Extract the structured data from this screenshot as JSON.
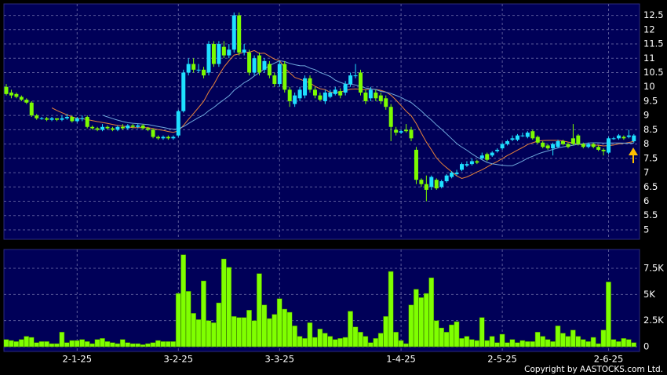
{
  "chart_data": [
    {
      "type": "candlestick",
      "up_color": "#1ee0ff",
      "down_color": "#7cfc00",
      "moving_averages": [
        {
          "period": 10,
          "color": "#e8823a"
        },
        {
          "period": 20,
          "color": "#6fa8dc"
        }
      ],
      "ylim": [
        4.67,
        12.9
      ],
      "yticks": [
        5,
        5.5,
        6,
        6.5,
        7,
        7.5,
        8,
        8.5,
        9,
        9.5,
        10,
        10.5,
        11,
        11.5,
        12,
        12.5
      ],
      "grid": true,
      "open": [
        10.0,
        9.8,
        9.75,
        9.65,
        9.55,
        9.45,
        9.0,
        8.9,
        8.9,
        8.85,
        8.9,
        8.85,
        8.9,
        8.95,
        8.8,
        8.9,
        8.95,
        8.6,
        8.55,
        8.5,
        8.6,
        8.55,
        8.5,
        8.6,
        8.55,
        8.65,
        8.6,
        8.65,
        8.55,
        8.5,
        8.25,
        8.2,
        8.25,
        8.2,
        8.3,
        9.15,
        10.5,
        10.8,
        10.6,
        10.6,
        10.5,
        11.5,
        10.8,
        11.4,
        11.1,
        11.3,
        12.5,
        11.2,
        11.2,
        10.5,
        11.1,
        10.6,
        10.8,
        10.4,
        10.1,
        10.8,
        9.9,
        9.4,
        9.6,
        9.7,
        10.3,
        9.9,
        9.7,
        9.5,
        9.65,
        9.75,
        9.85,
        9.8,
        10.1,
        10.4,
        10.5,
        9.8,
        9.6,
        9.8,
        9.7,
        9.6,
        9.3,
        8.5,
        8.4,
        8.5,
        8.5,
        7.8,
        6.75,
        6.6,
        6.5,
        6.75,
        6.5,
        6.7,
        6.85,
        6.95,
        7.1,
        7.25,
        7.3,
        7.4,
        7.5,
        7.65,
        7.6,
        7.75,
        7.85,
        8.0,
        8.15,
        8.15,
        8.3,
        8.25,
        8.45,
        8.25,
        8.05,
        7.95,
        7.85,
        7.9,
        8.1,
        8.0,
        8.2,
        8.3,
        8.0,
        7.9,
        8.0,
        7.9,
        7.8,
        7.7,
        8.2,
        8.2,
        8.25,
        8.25,
        8.1
      ],
      "high": [
        10.1,
        9.9,
        9.8,
        9.7,
        9.6,
        9.5,
        9.05,
        8.95,
        8.95,
        8.95,
        8.9,
        9.0,
        9.05,
        9.0,
        8.95,
        9.0,
        9.0,
        8.65,
        8.6,
        8.7,
        8.65,
        8.6,
        8.65,
        8.7,
        8.7,
        8.7,
        8.7,
        8.7,
        8.6,
        8.55,
        8.3,
        8.3,
        8.3,
        8.3,
        9.2,
        10.6,
        11.0,
        11.0,
        10.8,
        10.7,
        11.6,
        11.6,
        11.6,
        11.6,
        11.5,
        12.6,
        12.6,
        11.5,
        11.3,
        11.1,
        11.2,
        11.0,
        10.9,
        10.5,
        10.9,
        10.9,
        10.0,
        9.8,
        10.0,
        10.4,
        10.4,
        10.0,
        9.8,
        9.9,
        9.9,
        10.0,
        9.95,
        10.2,
        10.5,
        10.8,
        10.6,
        9.9,
        10.0,
        9.9,
        9.8,
        9.7,
        9.4,
        8.6,
        8.5,
        8.7,
        8.6,
        7.9,
        6.8,
        6.9,
        6.9,
        6.8,
        6.75,
        6.95,
        7.05,
        7.1,
        7.35,
        7.4,
        7.5,
        7.45,
        7.7,
        7.7,
        7.75,
        7.85,
        8.05,
        8.15,
        8.3,
        8.35,
        8.4,
        8.45,
        8.5,
        8.3,
        8.1,
        8.0,
        8.05,
        8.15,
        8.15,
        8.05,
        8.7,
        8.35,
        8.05,
        8.05,
        8.05,
        7.95,
        7.85,
        8.25,
        8.25,
        8.35,
        8.3,
        8.5,
        8.35
      ],
      "low": [
        9.7,
        9.6,
        9.6,
        9.5,
        9.4,
        8.95,
        8.85,
        8.85,
        8.8,
        8.8,
        8.8,
        8.8,
        8.85,
        8.75,
        8.75,
        8.8,
        8.55,
        8.5,
        8.45,
        8.45,
        8.5,
        8.45,
        8.45,
        8.5,
        8.5,
        8.55,
        8.55,
        8.5,
        8.45,
        8.2,
        8.15,
        8.15,
        8.15,
        8.15,
        8.25,
        9.1,
        10.4,
        10.5,
        10.5,
        10.3,
        10.4,
        10.7,
        10.7,
        11.0,
        11.0,
        11.2,
        11.1,
        11.1,
        10.4,
        10.4,
        10.4,
        10.5,
        10.3,
        10.0,
        10.0,
        9.8,
        9.3,
        9.3,
        9.5,
        9.6,
        9.8,
        9.6,
        9.5,
        9.4,
        9.6,
        9.7,
        9.6,
        9.7,
        10.0,
        10.3,
        9.7,
        9.4,
        9.5,
        9.5,
        9.4,
        9.2,
        8.1,
        8.3,
        8.35,
        8.4,
        8.1,
        6.6,
        6.5,
        6.0,
        6.4,
        6.4,
        6.45,
        6.65,
        6.8,
        6.9,
        7.05,
        7.2,
        7.25,
        7.3,
        7.45,
        7.4,
        7.55,
        7.7,
        7.8,
        7.95,
        8.1,
        8.1,
        8.25,
        8.2,
        8.15,
        8.0,
        7.85,
        7.8,
        7.6,
        7.85,
        7.95,
        7.85,
        7.95,
        7.95,
        7.85,
        7.85,
        7.85,
        7.75,
        7.6,
        7.65,
        8.15,
        8.15,
        8.15,
        8.2,
        8.05
      ],
      "close": [
        9.75,
        9.7,
        9.65,
        9.55,
        9.45,
        9.0,
        8.9,
        8.9,
        8.85,
        8.9,
        8.85,
        8.9,
        8.95,
        8.8,
        8.9,
        8.9,
        8.6,
        8.55,
        8.5,
        8.6,
        8.55,
        8.5,
        8.6,
        8.55,
        8.65,
        8.6,
        8.65,
        8.55,
        8.5,
        8.25,
        8.2,
        8.25,
        8.2,
        8.25,
        9.15,
        10.5,
        10.8,
        10.6,
        10.6,
        10.4,
        11.5,
        10.8,
        11.5,
        11.1,
        11.3,
        12.5,
        11.2,
        11.3,
        10.5,
        11.0,
        10.5,
        10.9,
        10.4,
        10.1,
        10.8,
        9.9,
        9.5,
        9.7,
        9.9,
        10.3,
        9.9,
        9.7,
        9.55,
        9.8,
        9.8,
        9.9,
        9.7,
        10.1,
        10.4,
        10.4,
        9.8,
        9.5,
        9.9,
        9.6,
        9.5,
        9.3,
        8.6,
        8.4,
        8.45,
        8.45,
        8.2,
        6.75,
        6.6,
        6.4,
        6.85,
        6.45,
        6.7,
        6.9,
        7.0,
        7.0,
        7.3,
        7.3,
        7.4,
        7.35,
        7.6,
        7.45,
        7.7,
        7.8,
        8.0,
        8.1,
        8.2,
        8.3,
        8.3,
        8.4,
        8.2,
        8.05,
        7.9,
        7.85,
        8.0,
        8.1,
        8.0,
        7.9,
        8.0,
        8.0,
        7.9,
        8.0,
        7.9,
        7.8,
        7.75,
        8.2,
        8.2,
        8.3,
        8.2,
        8.3,
        8.3
      ]
    },
    {
      "type": "bar",
      "color": "#7fff00",
      "ylim": [
        0,
        9300
      ],
      "yticks": [
        0,
        {
          "value": 2500,
          "label": "2.5K"
        },
        {
          "value": 5000,
          "label": "5K"
        },
        {
          "value": 7500,
          "label": "7.5K"
        }
      ],
      "grid": true,
      "xticks": [
        {
          "value": 14,
          "label": "2-1-25"
        },
        {
          "value": 34,
          "label": "3-2-25"
        },
        {
          "value": 54,
          "label": "3-3-25"
        },
        {
          "value": 78,
          "label": "1-4-25"
        },
        {
          "value": 98,
          "label": "2-5-25"
        },
        {
          "value": 119,
          "label": "2-6-25"
        }
      ],
      "values": [
        700,
        600,
        500,
        700,
        1000,
        900,
        400,
        500,
        500,
        300,
        300,
        1400,
        400,
        600,
        600,
        700,
        500,
        300,
        700,
        800,
        500,
        400,
        300,
        700,
        400,
        300,
        300,
        200,
        300,
        400,
        600,
        500,
        500,
        500,
        5100,
        8800,
        5300,
        3200,
        2600,
        6300,
        2500,
        2300,
        4200,
        8400,
        7600,
        2900,
        2800,
        2800,
        3500,
        2500,
        7000,
        4000,
        2700,
        3100,
        4600,
        3600,
        3300,
        2000,
        1000,
        800,
        2300,
        900,
        1700,
        1300,
        1000,
        700,
        800,
        900,
        3400,
        1900,
        1400,
        1000,
        400,
        800,
        1300,
        2900,
        7200,
        1400,
        600,
        300,
        4000,
        5500,
        4700,
        5100,
        6600,
        2500,
        1800,
        1400,
        2100,
        2400,
        800,
        1000,
        700,
        600,
        2800,
        600,
        1000,
        400,
        1200,
        400,
        700,
        400,
        600,
        500,
        500,
        1400,
        1000,
        700,
        500,
        2000,
        1300,
        1000,
        1600,
        1000,
        700,
        500,
        900,
        300,
        1600,
        6200,
        700,
        500,
        800,
        700,
        400
      ]
    }
  ],
  "footer": "Copyright by AASTOCKS.com Ltd."
}
